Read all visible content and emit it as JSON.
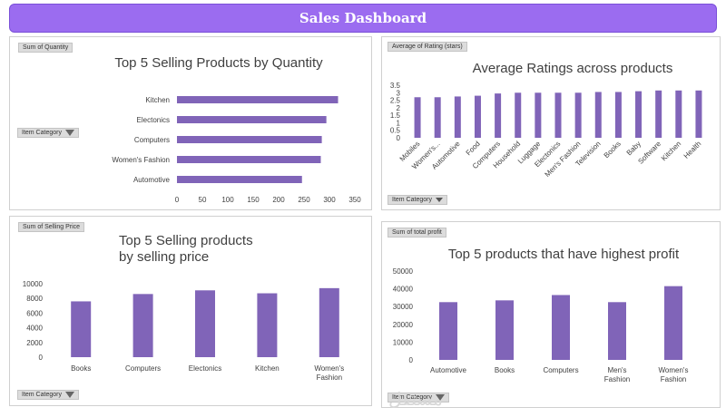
{
  "header": {
    "title": "Sales Dashboard"
  },
  "colors": {
    "bar": "#8064b8",
    "banner": "#9b6cf0"
  },
  "panels": {
    "quantity": {
      "field_label": "Sum of Quantity",
      "filter_label": "Item Category"
    },
    "rating": {
      "field_label": "Average of Rating (stars)",
      "filter_label": "Item Category"
    },
    "price": {
      "field_label": "Sum of Selling Price",
      "filter_label": "Item Category"
    },
    "profit": {
      "field_label": "Sum of total profit",
      "filter_label": "Item Category"
    }
  },
  "watermark": "مستقل",
  "chart_data": [
    {
      "type": "bar",
      "orientation": "horizontal",
      "title": "Top 5 Selling Products by Quantity",
      "categories": [
        "Kitchen",
        "Electonics",
        "Computers",
        "Women's Fashion",
        "Automotive"
      ],
      "values": [
        317,
        294,
        285,
        283,
        246
      ],
      "xlim": [
        0,
        350
      ],
      "xticks": [
        "0",
        "50",
        "100",
        "150",
        "200",
        "250",
        "300",
        "350"
      ],
      "grid": false
    },
    {
      "type": "bar",
      "title": "Average Ratings across products",
      "categories": [
        "Mobiles",
        "Women's...",
        "Automotive",
        "Food",
        "Computers",
        "Household",
        "Luggage",
        "Electonics",
        "Men's Fashion",
        "Television",
        "Books",
        "Baby",
        "Software",
        "Kitchen",
        "Health"
      ],
      "values": [
        2.7,
        2.7,
        2.75,
        2.8,
        2.95,
        3.0,
        3.0,
        3.0,
        3.0,
        3.05,
        3.05,
        3.1,
        3.15,
        3.15,
        3.15
      ],
      "ylim": [
        0,
        3.5
      ],
      "yticks": [
        "0",
        "0.5",
        "1",
        "1.5",
        "2",
        "2.5",
        "3",
        "3.5"
      ],
      "grid": false
    },
    {
      "type": "bar",
      "title": "Top 5 Selling products by selling price",
      "title_lines": [
        "Top 5 Selling products",
        "by selling price"
      ],
      "categories": [
        "Books",
        "Computers",
        "Electonics",
        "Kitchen",
        "Women's Fashion"
      ],
      "values": [
        7600,
        8600,
        9100,
        8700,
        9400
      ],
      "ylim": [
        0,
        10000
      ],
      "yticks": [
        "0",
        "2000",
        "4000",
        "6000",
        "8000",
        "10000"
      ],
      "grid": false
    },
    {
      "type": "bar",
      "title": "Top 5 products that have highest profit",
      "categories": [
        "Automotive",
        "Books",
        "Computers",
        "Men's Fashion",
        "Women's Fashion"
      ],
      "values": [
        32500,
        33500,
        36500,
        32500,
        41500
      ],
      "ylim": [
        0,
        50000
      ],
      "yticks": [
        "0",
        "10000",
        "20000",
        "30000",
        "40000",
        "50000"
      ],
      "grid": false
    }
  ]
}
